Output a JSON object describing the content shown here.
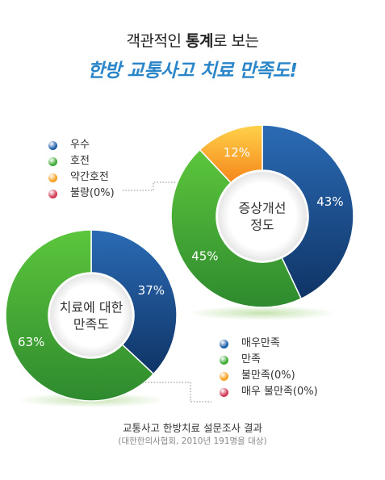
{
  "title": {
    "line1_pre": "객관적인 ",
    "line1_bold": "통계",
    "line1_post": "로 보는",
    "line2": "한방 교통사고 치료 만족도!"
  },
  "chart_data": [
    {
      "type": "pie",
      "title": "증상개선 정도",
      "categories": [
        "우수",
        "호전",
        "약간호전",
        "불량(0%)"
      ],
      "values": [
        43,
        45,
        12,
        0
      ],
      "value_labels": [
        "43%",
        "45%",
        "12%",
        ""
      ],
      "colors": [
        "#1c4f8e",
        "#3f9e36",
        "#f5a21b",
        "#d23a55"
      ],
      "legend_position": "top-left"
    },
    {
      "type": "pie",
      "title": "치료에 대한 만족도",
      "categories": [
        "매우만족",
        "만족",
        "불만족(0%)",
        "매우 불만족(0%)"
      ],
      "values": [
        37,
        63,
        0,
        0
      ],
      "value_labels": [
        "37%",
        "63%",
        "",
        ""
      ],
      "colors": [
        "#1c4f8e",
        "#3f9e36",
        "#f5a21b",
        "#d23a55"
      ],
      "legend_position": "bottom-right"
    }
  ],
  "chart_center_labels": [
    [
      "증상개선",
      "정도"
    ],
    [
      "치료에 대한",
      "만족도"
    ]
  ],
  "footer": {
    "source_title": "교통사고 한방치료 설문조사 결과",
    "source_detail": "(대한한의사협회, 2010년 191명을 대상)"
  }
}
